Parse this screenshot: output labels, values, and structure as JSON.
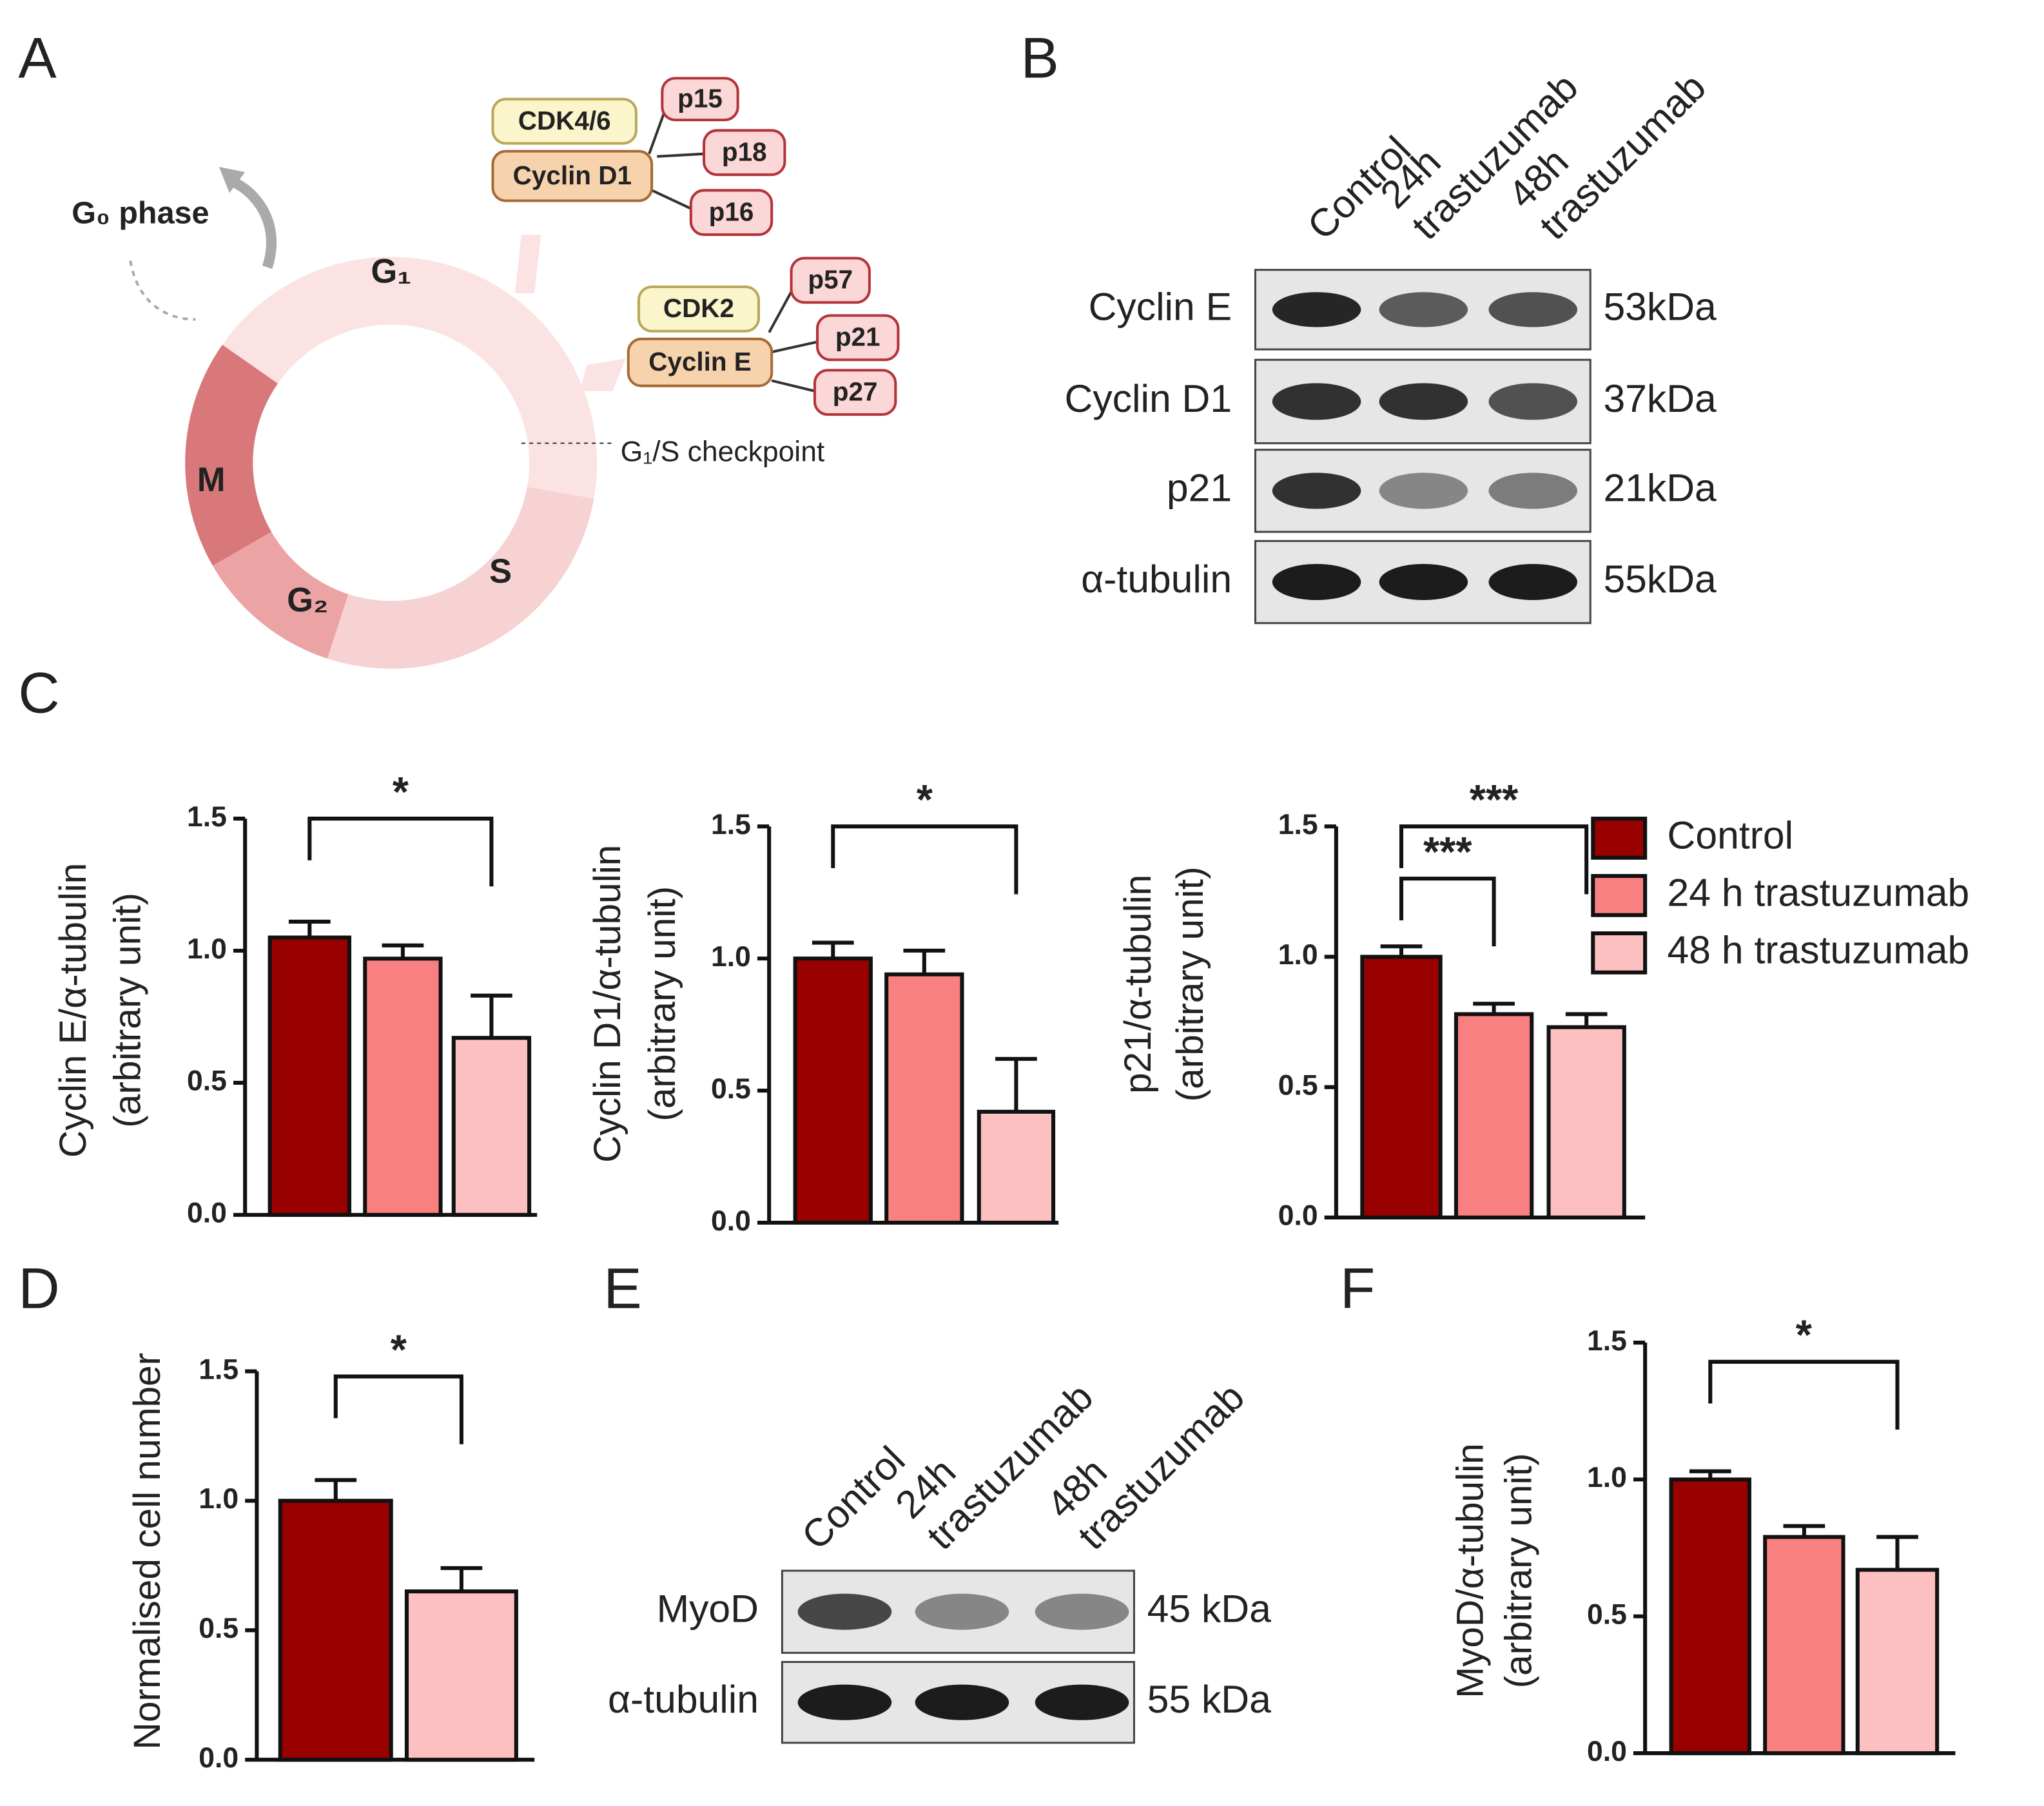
{
  "panel_labels": [
    "A",
    "B",
    "C",
    "D",
    "E",
    "F"
  ],
  "cell_cycle": {
    "g0": "G₀ phase",
    "g1": "G₁",
    "m": "M",
    "g2": "G₂",
    "s": "S",
    "checkpoint": "G₁/S checkpoint",
    "boxes": [
      {
        "text": "CDK4/6",
        "kind": "cdk"
      },
      {
        "text": "Cyclin D1",
        "kind": "cyclin"
      },
      {
        "text": "p15",
        "kind": "inhibitor"
      },
      {
        "text": "p18",
        "kind": "inhibitor"
      },
      {
        "text": "p16",
        "kind": "inhibitor"
      },
      {
        "text": "CDK2",
        "kind": "cdk"
      },
      {
        "text": "Cyclin E",
        "kind": "cyclin"
      },
      {
        "text": "p57",
        "kind": "inhibitor"
      },
      {
        "text": "p21",
        "kind": "inhibitor"
      },
      {
        "text": "p27",
        "kind": "inhibitor"
      }
    ]
  },
  "blot_b": {
    "lanes": [
      [
        "Control"
      ],
      [
        "24h",
        "trastuzumab"
      ],
      [
        "48h",
        "trastuzumab"
      ]
    ],
    "rows": [
      {
        "protein": "Cyclin E",
        "size": "53kDa"
      },
      {
        "protein": "Cyclin D1",
        "size": "37kDa"
      },
      {
        "protein": "p21",
        "size": "21kDa"
      },
      {
        "protein": "α-tubulin",
        "size": "55kDa"
      }
    ]
  },
  "blot_e": {
    "lanes": [
      [
        "Control"
      ],
      [
        "24h",
        "trastuzumab"
      ],
      [
        "48h",
        "trastuzumab"
      ]
    ],
    "rows": [
      {
        "protein": "MyoD",
        "size": "45 kDa"
      },
      {
        "protein": "α-tubulin",
        "size": "55 kDa"
      }
    ]
  },
  "chart_data": [
    {
      "type": "bar",
      "y_label": [
        "Cyclin E/α-tubulin",
        "(arbitrary unit)"
      ],
      "categories": [
        null,
        null,
        null
      ],
      "values": [
        1.05,
        0.97,
        0.67
      ],
      "errors": [
        0.06,
        0.05,
        0.16
      ],
      "colors": [
        "#990000",
        "#f98080",
        "#fdc0c0"
      ],
      "ylim": [
        0,
        1.5
      ],
      "yticks": [
        {
          "value": 0,
          "label": "0.0"
        },
        {
          "value": 0.5,
          "label": "0.5"
        },
        {
          "value": 1,
          "label": "1.0"
        },
        {
          "value": 1.5,
          "label": "1.5"
        }
      ],
      "annotations": [
        "*"
      ]
    },
    {
      "type": "bar",
      "y_label": [
        "Cyclin D1/α-tubulin",
        "(arbitrary unit)"
      ],
      "categories": [
        null,
        null,
        null
      ],
      "values": [
        1.0,
        0.94,
        0.42
      ],
      "errors": [
        0.06,
        0.09,
        0.2
      ],
      "colors": [
        "#990000",
        "#f98080",
        "#fdc0c0"
      ],
      "ylim": [
        0,
        1.5
      ],
      "yticks": [
        {
          "value": 0,
          "label": "0.0"
        },
        {
          "value": 0.5,
          "label": "0.5"
        },
        {
          "value": 1,
          "label": "1.0"
        },
        {
          "value": 1.5,
          "label": "1.5"
        }
      ],
      "annotations": [
        "*"
      ]
    },
    {
      "type": "bar",
      "y_label": [
        "p21/α-tubulin",
        "(arbitrary unit)"
      ],
      "categories": [
        null,
        null,
        null
      ],
      "values": [
        1.0,
        0.78,
        0.73
      ],
      "errors": [
        0.04,
        0.04,
        0.05
      ],
      "colors": [
        "#990000",
        "#f98080",
        "#fdc0c0"
      ],
      "ylim": [
        0,
        1.5
      ],
      "yticks": [
        {
          "value": 0,
          "label": "0.0"
        },
        {
          "value": 0.5,
          "label": "0.5"
        },
        {
          "value": 1,
          "label": "1.0"
        },
        {
          "value": 1.5,
          "label": "1.5"
        }
      ],
      "annotations": [
        "***",
        "***"
      ],
      "legend": [
        {
          "name": "Control",
          "color": "#990000"
        },
        {
          "name": "24 h trastuzumab",
          "color": "#f98080"
        },
        {
          "name": "48 h trastuzumab",
          "color": "#fdc0c0"
        }
      ]
    },
    {
      "type": "bar",
      "y_label": [
        "Normalised cell number"
      ],
      "categories": [
        null,
        null
      ],
      "values": [
        1.0,
        0.65
      ],
      "errors": [
        0.08,
        0.09
      ],
      "colors": [
        "#990000",
        "#fdc0c0"
      ],
      "ylim": [
        0,
        1.5
      ],
      "yticks": [
        {
          "value": 0,
          "label": "0.0"
        },
        {
          "value": 0.5,
          "label": "0.5"
        },
        {
          "value": 1,
          "label": "1.0"
        },
        {
          "value": 1.5,
          "label": "1.5"
        }
      ],
      "annotations": [
        "*"
      ]
    },
    {
      "type": "bar",
      "y_label": [
        "MyoD/α-tubulin",
        "(arbitrary unit)"
      ],
      "categories": [
        null,
        null,
        null
      ],
      "values": [
        1.0,
        0.79,
        0.67
      ],
      "errors": [
        0.03,
        0.04,
        0.12
      ],
      "colors": [
        "#990000",
        "#f98080",
        "#fdc0c0"
      ],
      "ylim": [
        0,
        1.5
      ],
      "yticks": [
        {
          "value": 0,
          "label": "0.0"
        },
        {
          "value": 0.5,
          "label": "0.5"
        },
        {
          "value": 1,
          "label": "1.0"
        },
        {
          "value": 1.5,
          "label": "1.5"
        }
      ],
      "annotations": [
        "*"
      ]
    }
  ]
}
